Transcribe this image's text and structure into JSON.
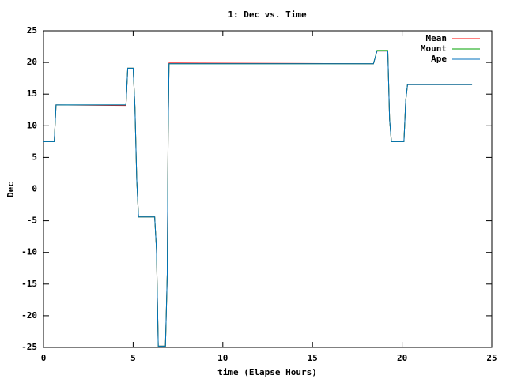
{
  "chart_data": {
    "type": "line",
    "title": "1: Dec vs. Time",
    "x_label": "time (Elapse Hours)",
    "y_label": "Dec",
    "x": [
      0,
      0.6,
      0.7,
      4.6,
      4.7,
      5.0,
      5.1,
      5.2,
      5.3,
      6.2,
      6.3,
      6.4,
      6.8,
      6.9,
      6.95,
      7.0,
      7.4,
      18.4,
      18.6,
      19.2,
      19.3,
      19.4,
      20.1,
      20.2,
      20.3,
      23.9
    ],
    "series": [
      {
        "name": "Mean",
        "color": "#ff0000",
        "values": [
          7.5,
          7.5,
          13.3,
          13.2,
          19.1,
          19.1,
          13,
          1.5,
          -4.4,
          -4.4,
          -9.5,
          -24.8,
          -24.8,
          -13.5,
          8.7,
          19.9,
          19.9,
          19.8,
          21.8,
          21.8,
          11,
          7.5,
          7.5,
          14,
          16.5,
          16.5
        ]
      },
      {
        "name": "Mount",
        "color": "#00a000",
        "values": [
          7.5,
          7.5,
          13.3,
          13.3,
          19.1,
          19.1,
          13,
          1.5,
          -4.4,
          -4.4,
          -9.5,
          -24.8,
          -24.8,
          -13.5,
          8.7,
          19.8,
          19.8,
          19.8,
          21.9,
          21.9,
          11,
          7.5,
          7.5,
          14,
          16.5,
          16.5
        ]
      },
      {
        "name": "Ape",
        "color": "#0072bd",
        "values": [
          7.5,
          7.5,
          13.3,
          13.3,
          19.1,
          19.1,
          13,
          1.5,
          -4.4,
          -4.4,
          -9.5,
          -24.8,
          -24.8,
          -13.5,
          8.7,
          19.8,
          19.8,
          19.8,
          21.8,
          21.8,
          11,
          7.5,
          7.5,
          14,
          16.5,
          16.5
        ]
      }
    ],
    "xlim": [
      0,
      25
    ],
    "xticks": [
      0,
      5,
      10,
      15,
      20,
      25
    ],
    "ylim": [
      -25,
      25
    ],
    "yticks": [
      -25,
      -20,
      -15,
      -10,
      -5,
      0,
      5,
      10,
      15,
      20,
      25
    ],
    "legend": "top-right",
    "grid": false
  }
}
